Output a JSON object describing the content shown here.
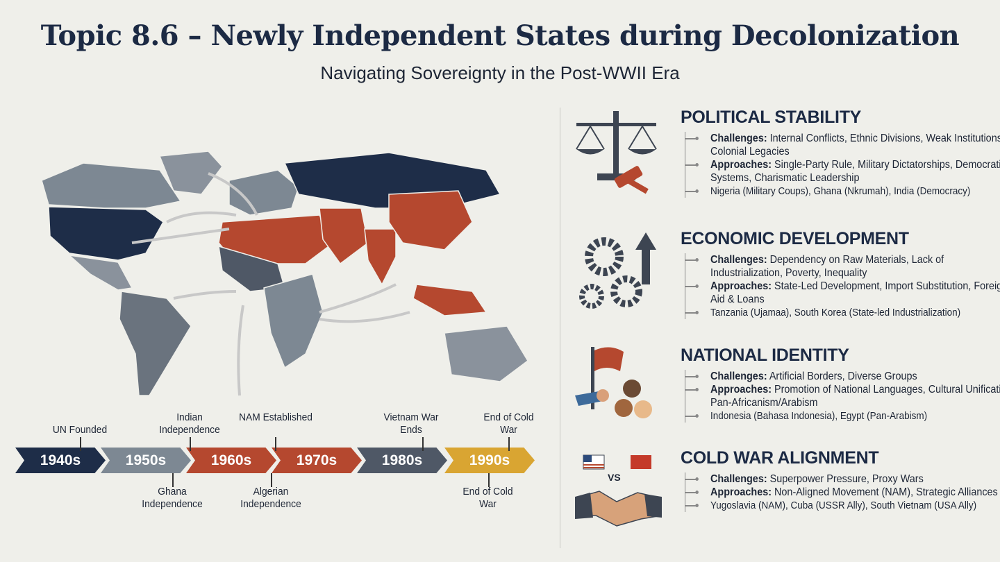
{
  "title": "Topic 8.6 – Newly Independent States during Decolonization",
  "subtitle": "Navigating Sovereignty in the Post-WWII Era",
  "colors": {
    "navy": "#1e2d48",
    "grey": "#7d8893",
    "rust": "#b5482f",
    "slate": "#4f5866",
    "gold": "#d9a532"
  },
  "timeline": [
    {
      "label": "1940s",
      "color": "#1e2d48",
      "above": "UN Founded",
      "below": ""
    },
    {
      "label": "1950s",
      "color": "#7d8893",
      "above": "Indian Independence",
      "below": "Ghana Independence"
    },
    {
      "label": "1960s",
      "color": "#b5482f",
      "above": "NAM Established",
      "below": "Algerian Independence"
    },
    {
      "label": "1970s",
      "color": "#b5482f",
      "above": "",
      "below": ""
    },
    {
      "label": "1980s",
      "color": "#4f5866",
      "above": "Vietnam War Ends",
      "below": ""
    },
    {
      "label": "1990s",
      "color": "#d9a532",
      "above": "End of Cold War",
      "below": "End of Cold War"
    }
  ],
  "sections": [
    {
      "heading": "POLITICAL STABILITY",
      "icon": "scales-gavel-icon",
      "challenges_label": "Challenges:",
      "challenges": "Internal Conflicts, Ethnic Divisions, Weak Institutions, Colonial Legacies",
      "approaches_label": "Approaches:",
      "approaches": "Single-Party Rule, Military Dictatorships, Democratic Systems, Charismatic Leadership",
      "examples": "Nigeria (Military Coups), Ghana (Nkrumah), India (Democracy)"
    },
    {
      "heading": "ECONOMIC DEVELOPMENT",
      "icon": "gears-arrow-icon",
      "challenges_label": "Challenges:",
      "challenges": "Dependency on Raw Materials, Lack of Industrialization, Poverty, Inequality",
      "approaches_label": "Approaches:",
      "approaches": "State-Led Development, Import Substitution, Foreign Aid & Loans",
      "examples": "Tanzania (Ujamaa), South Korea (State-led Industrialization)"
    },
    {
      "heading": "NATIONAL IDENTITY",
      "icon": "flag-people-icon",
      "challenges_label": "Challenges:",
      "challenges": "Artificial Borders, Diverse Groups",
      "approaches_label": "Approaches:",
      "approaches": "Promotion of National Languages, Cultural Unification, Pan-Africanism/Arabism",
      "examples": "Indonesia (Bahasa Indonesia), Egypt (Pan-Arabism)"
    },
    {
      "heading": "COLD WAR ALIGNMENT",
      "icon": "handshake-vs-icon",
      "vs": "VS",
      "challenges_label": "Challenges:",
      "challenges": "Superpower Pressure, Proxy Wars",
      "approaches_label": "Approaches:",
      "approaches": "Non-Aligned Movement (NAM), Strategic Alliances",
      "examples": "Yugoslavia (NAM), Cuba (USSR Ally), South Vietnam (USA Ally)"
    }
  ]
}
